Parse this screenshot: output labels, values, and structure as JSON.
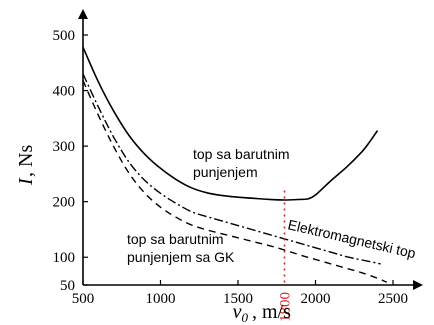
{
  "chart_data": {
    "type": "line",
    "title": "",
    "xlabel": "v0, m/s",
    "ylabel": "I, Ns",
    "xlim": [
      500,
      2500
    ],
    "ylim": [
      50,
      500
    ],
    "x_ticks": [
      500,
      1000,
      1500,
      2000,
      2500
    ],
    "y_ticks": [
      50,
      100,
      200,
      300,
      400,
      500
    ],
    "x_tick_labels": [
      "500",
      "1000",
      "1500",
      "2000",
      "2500"
    ],
    "y_tick_labels": [
      "50",
      "100",
      "200",
      "300",
      "400",
      "500"
    ],
    "grid": false,
    "colors": {
      "axis": "#000000",
      "solid_line": "#000000",
      "dashdot_line": "#000000",
      "dashed_line": "#000000",
      "marker": "#d42020"
    },
    "series": [
      {
        "style": "solid",
        "points": [
          [
            500,
            478
          ],
          [
            600,
            415
          ],
          [
            700,
            362
          ],
          [
            800,
            318
          ],
          [
            900,
            285
          ],
          [
            1000,
            260
          ],
          [
            1100,
            240
          ],
          [
            1200,
            225
          ],
          [
            1300,
            216
          ],
          [
            1400,
            211
          ],
          [
            1500,
            208
          ],
          [
            1600,
            206
          ],
          [
            1700,
            204
          ],
          [
            1800,
            203
          ],
          [
            1900,
            204
          ],
          [
            1950,
            205
          ],
          [
            2000,
            212
          ],
          [
            2100,
            238
          ],
          [
            2200,
            262
          ],
          [
            2300,
            290
          ],
          [
            2350,
            308
          ],
          [
            2400,
            328
          ]
        ]
      },
      {
        "style": "dashdot",
        "points": [
          [
            500,
            430
          ],
          [
            600,
            370
          ],
          [
            700,
            315
          ],
          [
            800,
            270
          ],
          [
            900,
            238
          ],
          [
            1000,
            215
          ],
          [
            1100,
            197
          ],
          [
            1200,
            182
          ],
          [
            1300,
            173
          ],
          [
            1400,
            165
          ],
          [
            1500,
            157
          ],
          [
            1600,
            149
          ],
          [
            1700,
            141
          ],
          [
            1800,
            133
          ],
          [
            1900,
            125
          ],
          [
            2000,
            117
          ],
          [
            2100,
            109
          ],
          [
            2200,
            101
          ],
          [
            2300,
            95
          ],
          [
            2420,
            88
          ]
        ]
      },
      {
        "style": "dashed",
        "points": [
          [
            500,
            418
          ],
          [
            600,
            355
          ],
          [
            700,
            298
          ],
          [
            800,
            250
          ],
          [
            900,
            215
          ],
          [
            1000,
            190
          ],
          [
            1100,
            172
          ],
          [
            1200,
            158
          ],
          [
            1300,
            149
          ],
          [
            1400,
            142
          ],
          [
            1500,
            135
          ],
          [
            1600,
            128
          ],
          [
            1700,
            121
          ],
          [
            1800,
            113
          ],
          [
            1900,
            104
          ],
          [
            2000,
            96
          ],
          [
            2100,
            88
          ],
          [
            2200,
            80
          ],
          [
            2300,
            72
          ],
          [
            2400,
            62
          ],
          [
            2460,
            55
          ]
        ]
      }
    ],
    "annotations": [
      {
        "text": "top sa barutnim",
        "target": "solid"
      },
      {
        "text": "punjenjem",
        "target": "solid"
      },
      {
        "text": "Elektromagnetski top",
        "target": "dashdot"
      },
      {
        "text": "top sa barutnim",
        "target": "dashed"
      },
      {
        "text": "punjenjem sa GK",
        "target": "dashed"
      }
    ],
    "vertical_marker": {
      "x": 1800,
      "label": "1800",
      "style": "dotted"
    }
  }
}
